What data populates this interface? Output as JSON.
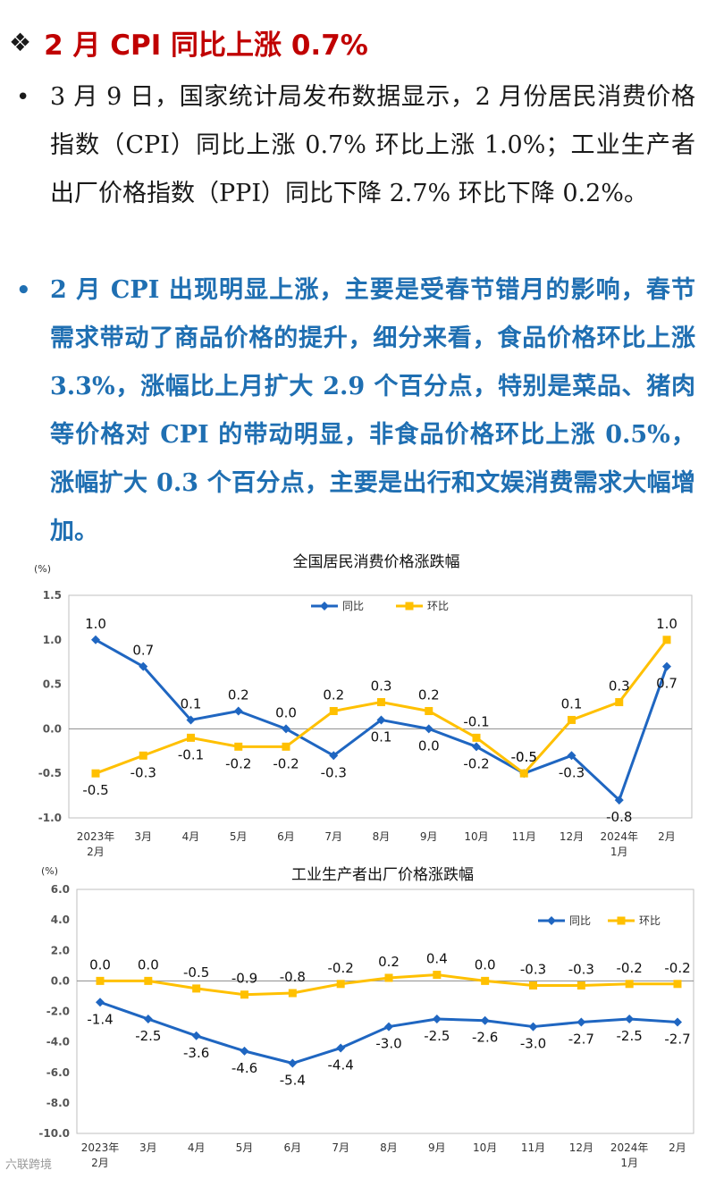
{
  "header": {
    "bullet_icon": "diamond-bullet",
    "title": "2 月 CPI 同比上涨 0.7%"
  },
  "paragraphs": [
    {
      "bullet": "•",
      "text": "3 月 9 日，国家统计局发布数据显示，2 月份居民消费价格指数（CPI）同比上涨 0.7% 环比上涨 1.0%；工业生产者出厂价格指数（PPI）同比下降 2.7% 环比下降 0.2%。"
    },
    {
      "bullet": "•",
      "text": "2 月 CPI 出现明显上涨，主要是受春节错月的影响，春节需求带动了商品价格的提升，细分来看，食品价格环比上涨 3.3%，涨幅比上月扩大 2.9 个百分点，特别是菜品、猪肉等价格对 CPI 的带动明显，非食品价格环比上涨 0.5%，涨幅扩大 0.3 个百分点，主要是出行和文娱消费需求大幅增加。"
    }
  ],
  "chart_data": [
    {
      "type": "line",
      "title": "全国居民消费价格涨跌幅",
      "ylabel": "(%)",
      "ylim": [
        -1.0,
        1.5
      ],
      "yticks": [
        "1.5",
        "1.0",
        "0.5",
        "0.0",
        "-0.5",
        "-1.0"
      ],
      "categories": [
        [
          "2023年",
          "2月"
        ],
        [
          "3月"
        ],
        [
          "4月"
        ],
        [
          "5月"
        ],
        [
          "6月"
        ],
        [
          "7月"
        ],
        [
          "8月"
        ],
        [
          "9月"
        ],
        [
          "10月"
        ],
        [
          "11月"
        ],
        [
          "12月"
        ],
        [
          "2024年",
          "1月"
        ],
        [
          "2月"
        ]
      ],
      "series": [
        {
          "name": "同比",
          "color": "#1f66c1",
          "values": [
            1.0,
            0.7,
            0.1,
            0.2,
            0.0,
            -0.3,
            0.1,
            0.0,
            -0.2,
            -0.5,
            -0.3,
            -0.8,
            0.7
          ],
          "labels": [
            "1.0",
            "0.7",
            "0.1",
            "0.2",
            "0.0",
            "-0.3",
            "0.1",
            "0.0",
            "-0.2",
            "-0.5",
            "-0.3",
            "-0.8",
            "0.7"
          ]
        },
        {
          "name": "环比",
          "color": "#ffc000",
          "values": [
            -0.5,
            -0.3,
            -0.1,
            -0.2,
            -0.2,
            0.2,
            0.3,
            0.2,
            -0.1,
            -0.5,
            0.1,
            0.3,
            1.0
          ],
          "labels": [
            "-0.5",
            "-0.3",
            "-0.1",
            "-0.2",
            "-0.2",
            "0.2",
            "0.3",
            "0.2",
            "-0.1",
            "-0.5",
            "0.1",
            "0.3",
            "1.0"
          ]
        }
      ],
      "legend": "top-center",
      "grid": false
    },
    {
      "type": "line",
      "title": "工业生产者出厂价格涨跌幅",
      "ylabel": "(%)",
      "ylim": [
        -10.0,
        6.0
      ],
      "yticks": [
        "6.0",
        "4.0",
        "2.0",
        "0.0",
        "-2.0",
        "-4.0",
        "-6.0",
        "-8.0",
        "-10.0"
      ],
      "categories": [
        [
          "2023年",
          "2月"
        ],
        [
          "3月"
        ],
        [
          "4月"
        ],
        [
          "5月"
        ],
        [
          "6月"
        ],
        [
          "7月"
        ],
        [
          "8月"
        ],
        [
          "9月"
        ],
        [
          "10月"
        ],
        [
          "11月"
        ],
        [
          "12月"
        ],
        [
          "2024年",
          "1月"
        ],
        [
          "2月"
        ]
      ],
      "series": [
        {
          "name": "同比",
          "color": "#1f66c1",
          "values": [
            -1.4,
            -2.5,
            -3.6,
            -4.6,
            -5.4,
            -4.4,
            -3.0,
            -2.5,
            -2.6,
            -3.0,
            -2.7,
            -2.5,
            -2.7
          ],
          "labels": [
            "-1.4",
            "-2.5",
            "-3.6",
            "-4.6",
            "-5.4",
            "-4.4",
            "-3.0",
            "-2.5",
            "-2.6",
            "-3.0",
            "-2.7",
            "-2.5",
            "-2.7"
          ]
        },
        {
          "name": "环比",
          "color": "#ffc000",
          "values": [
            0.0,
            0.0,
            -0.5,
            -0.9,
            -0.8,
            -0.2,
            0.2,
            0.4,
            0.0,
            -0.3,
            -0.3,
            -0.2,
            -0.2
          ],
          "labels": [
            "0.0",
            "0.0",
            "-0.5",
            "-0.9",
            "-0.8",
            "-0.2",
            "0.2",
            "0.4",
            "0.0",
            "-0.3",
            "-0.3",
            "-0.2",
            "-0.2"
          ]
        }
      ],
      "legend": "top-right",
      "grid": false
    }
  ],
  "watermark": "六联跨境"
}
